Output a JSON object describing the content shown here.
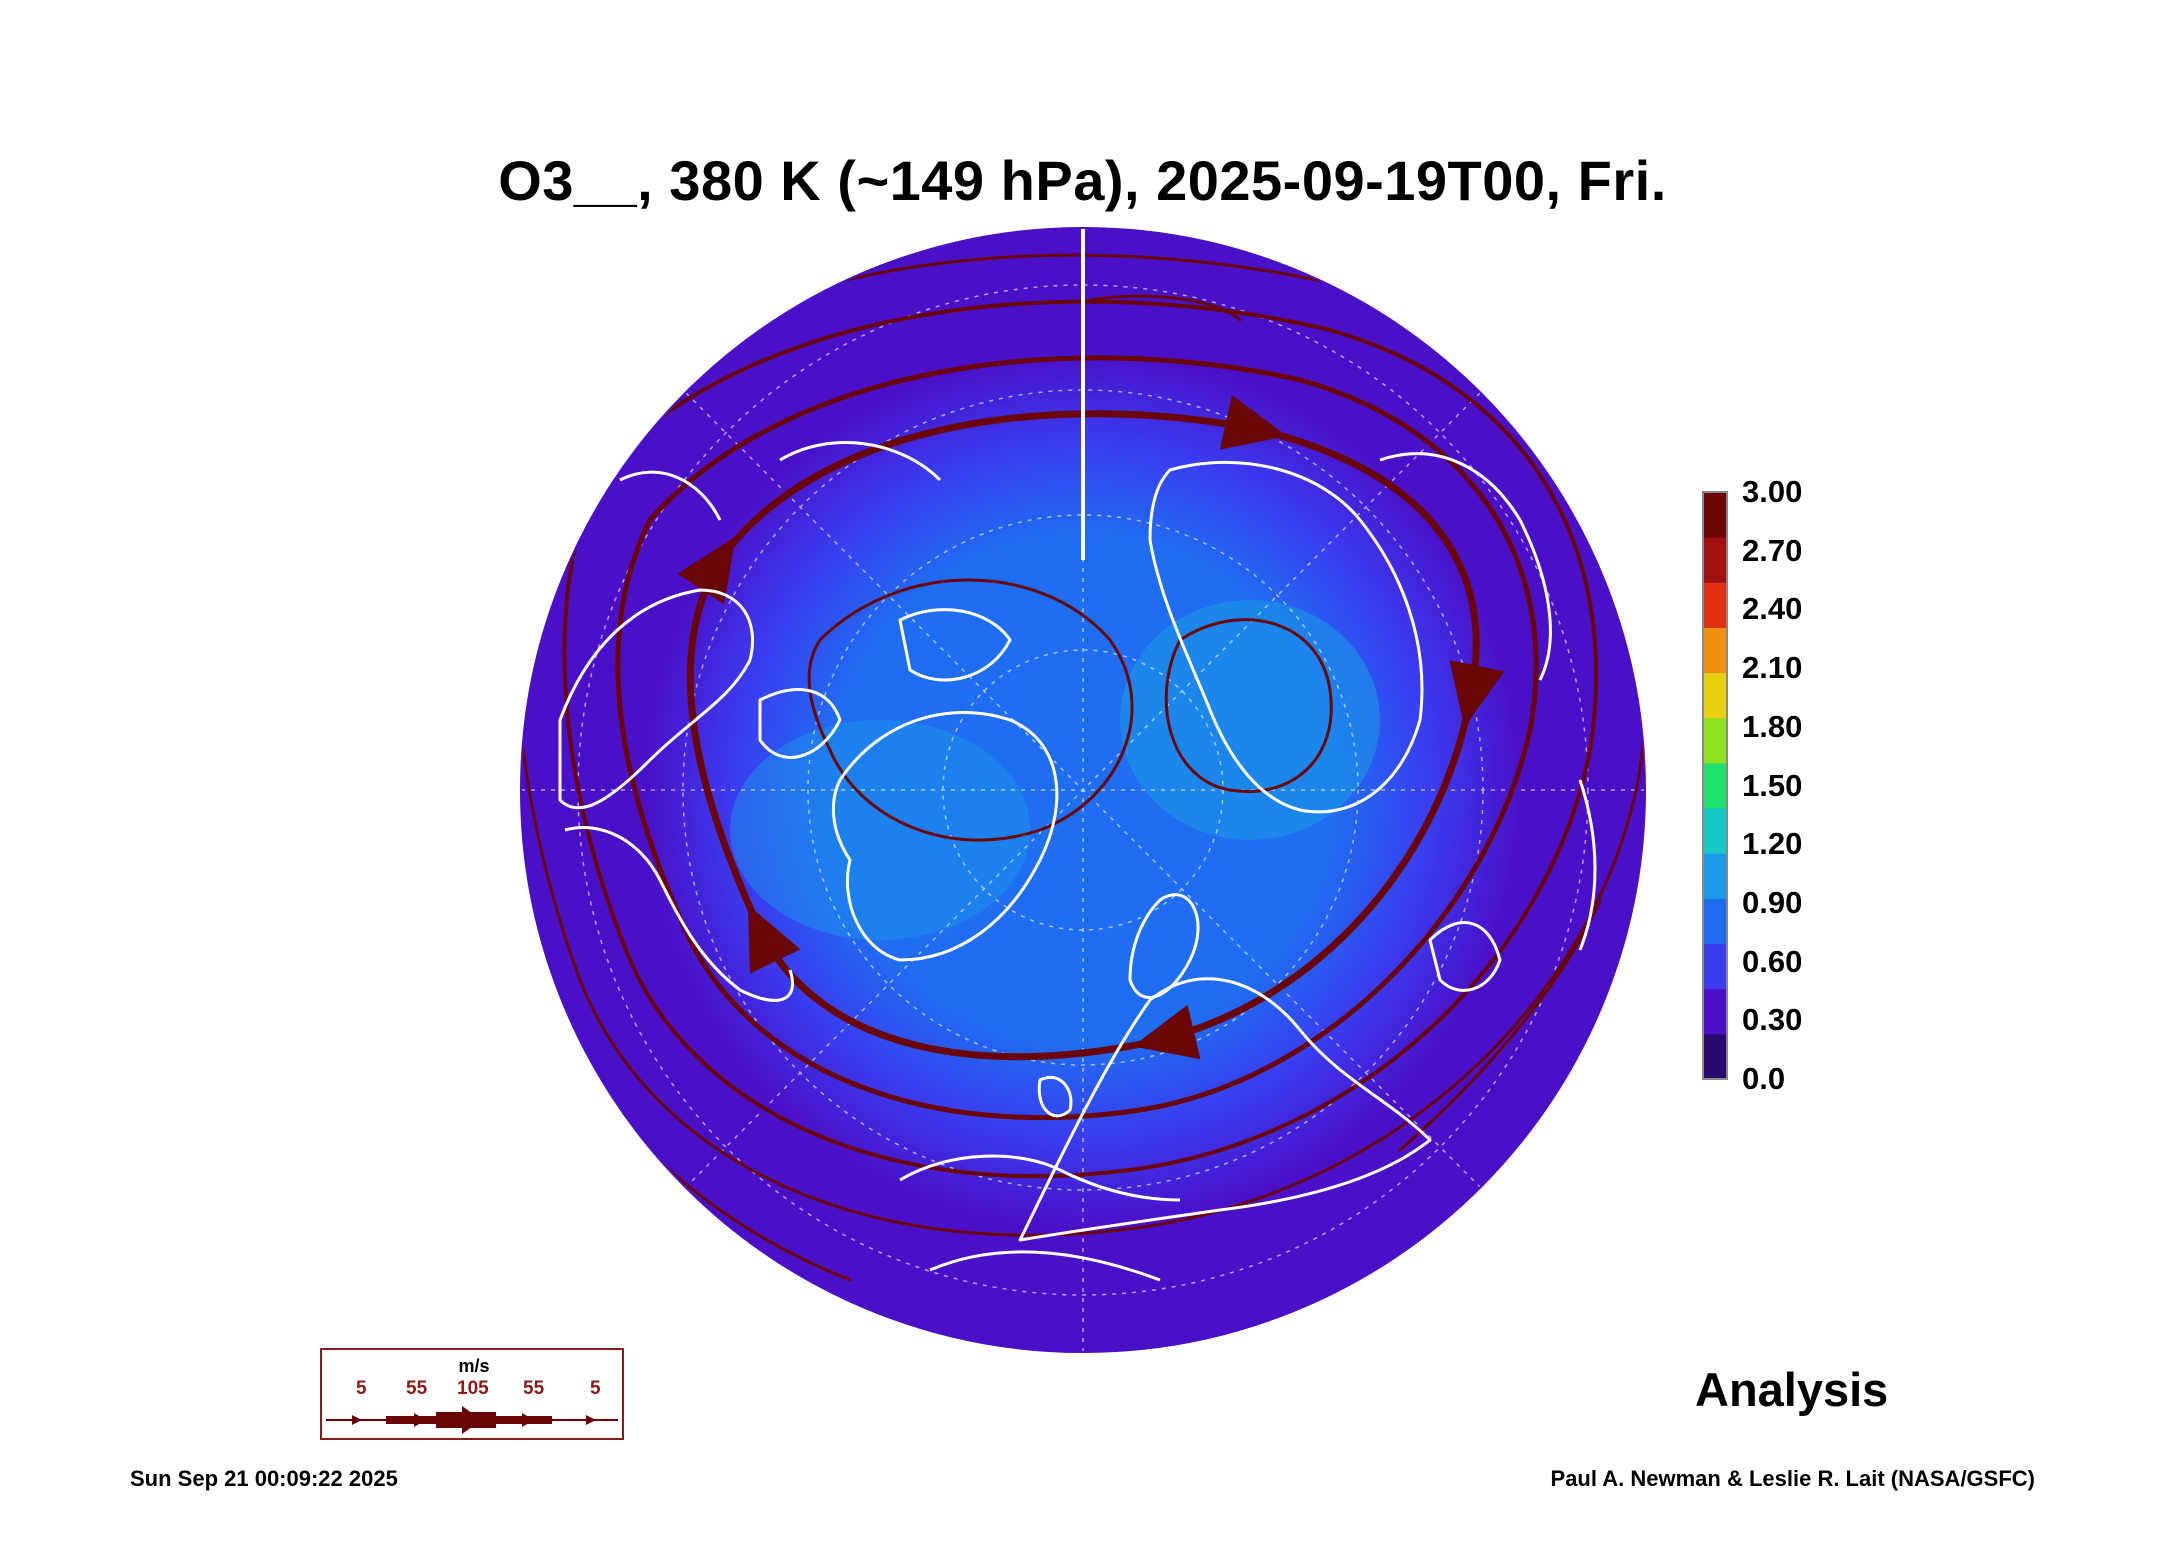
{
  "title": "O3__, 380 K (~149 hPa), 2025-09-19T00, Fri.",
  "colorbar": {
    "ticks": [
      "3.00",
      "2.70",
      "2.40",
      "2.10",
      "1.80",
      "1.50",
      "1.20",
      "0.90",
      "0.60",
      "0.30",
      "0.0"
    ],
    "min": 0.0,
    "max": 3.0,
    "colors": [
      "#2a0a6e",
      "#4a10c8",
      "#3a3cf0",
      "#1f6df0",
      "#1a9ae8",
      "#17c8c8",
      "#20e070",
      "#8ee020",
      "#e8d010",
      "#f09010",
      "#e03010",
      "#a01010",
      "#6a0606"
    ]
  },
  "map": {
    "projection": "north-polar-orthographic",
    "background_color": "#4a10c8",
    "inner_color": "#1f6df0",
    "coastline_color": "#ffffff",
    "streamline_color": "#6a0606"
  },
  "wind_legend": {
    "unit": "m/s",
    "labels": [
      "5",
      "55",
      "105",
      "55",
      "5"
    ]
  },
  "analysis_label": "Analysis",
  "footer": {
    "timestamp": "Sun Sep 21 00:09:22 2025",
    "credit": "Paul A. Newman & Leslie R. Lait (NASA/GSFC)"
  }
}
